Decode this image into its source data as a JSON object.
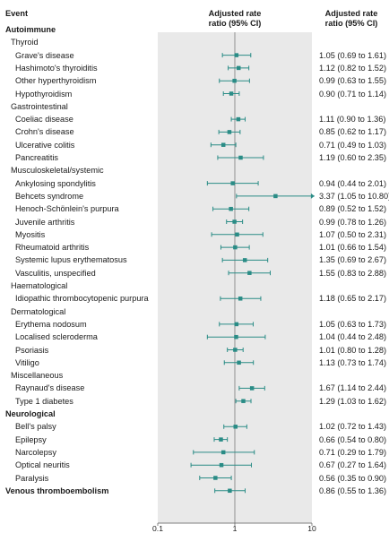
{
  "headers": {
    "event": "Event",
    "ratio_line1": "Adjusted rate",
    "ratio_line2": "ratio (95% CI)",
    "ci_line1": "Adjusted rate",
    "ci_line2": "ratio (95% CI)"
  },
  "colors": {
    "marker": "#2a8c86",
    "band": "#e9e9e9",
    "refline": "#7a7a7a"
  },
  "chart_data": {
    "type": "forest",
    "x_scale": "log",
    "xlim": [
      0.1,
      10
    ],
    "x_ticks": [
      {
        "value": 0.1,
        "label": "0.1"
      },
      {
        "value": 1,
        "label": "1"
      },
      {
        "value": 10,
        "label": "10"
      }
    ],
    "reference_value": 1,
    "rows": [
      {
        "label": "Autoimmune",
        "kind": "group"
      },
      {
        "label": "Thyroid",
        "kind": "sub"
      },
      {
        "label": "Grave's disease",
        "kind": "item",
        "est": 1.05,
        "lo": 0.69,
        "hi": 1.61,
        "text": "1.05 (0.69 to 1.61)"
      },
      {
        "label": "Hashimoto's thyroiditis",
        "kind": "item",
        "est": 1.12,
        "lo": 0.82,
        "hi": 1.52,
        "text": "1.12 (0.82 to 1.52)"
      },
      {
        "label": "Other hyperthyroidism",
        "kind": "item",
        "est": 0.99,
        "lo": 0.63,
        "hi": 1.55,
        "text": "0.99 (0.63 to 1.55)"
      },
      {
        "label": "Hypothyroidism",
        "kind": "item",
        "est": 0.9,
        "lo": 0.71,
        "hi": 1.14,
        "text": "0.90 (0.71 to 1.14)"
      },
      {
        "label": "Gastrointestinal",
        "kind": "sub"
      },
      {
        "label": "Coeliac disease",
        "kind": "item",
        "est": 1.11,
        "lo": 0.9,
        "hi": 1.36,
        "text": "1.11 (0.90 to 1.36)"
      },
      {
        "label": "Crohn's disease",
        "kind": "item",
        "est": 0.85,
        "lo": 0.62,
        "hi": 1.17,
        "text": "0.85 (0.62 to 1.17)"
      },
      {
        "label": "Ulcerative colitis",
        "kind": "item",
        "est": 0.71,
        "lo": 0.49,
        "hi": 1.03,
        "text": "0.71 (0.49 to 1.03)"
      },
      {
        "label": "Pancreatitis",
        "kind": "item",
        "est": 1.19,
        "lo": 0.6,
        "hi": 2.35,
        "text": "1.19 (0.60 to 2.35)"
      },
      {
        "label": "Musculoskeletal/systemic",
        "kind": "sub"
      },
      {
        "label": "Ankylosing spondylitis",
        "kind": "item",
        "est": 0.94,
        "lo": 0.44,
        "hi": 2.01,
        "text": "0.94 (0.44 to 2.01)"
      },
      {
        "label": "Behcets syndrome",
        "kind": "item",
        "est": 3.37,
        "lo": 1.05,
        "hi": 10.8,
        "text": "3.37 (1.05 to 10.80)",
        "arrow": true
      },
      {
        "label": "Henoch-Schönlein's purpura",
        "kind": "item",
        "est": 0.89,
        "lo": 0.52,
        "hi": 1.52,
        "text": "0.89 (0.52 to 1.52)"
      },
      {
        "label": "Juvenile arthritis",
        "kind": "item",
        "est": 0.99,
        "lo": 0.78,
        "hi": 1.26,
        "text": "0.99 (0.78 to 1.26)"
      },
      {
        "label": "Myositis",
        "kind": "item",
        "est": 1.07,
        "lo": 0.5,
        "hi": 2.31,
        "text": "1.07 (0.50 to 2.31)"
      },
      {
        "label": "Rheumatoid arthritis",
        "kind": "item",
        "est": 1.01,
        "lo": 0.66,
        "hi": 1.54,
        "text": "1.01 (0.66 to 1.54)"
      },
      {
        "label": "Systemic lupus erythematosus",
        "kind": "item",
        "est": 1.35,
        "lo": 0.69,
        "hi": 2.67,
        "text": "1.35 (0.69 to 2.67)"
      },
      {
        "label": "Vasculitis, unspecified",
        "kind": "item",
        "est": 1.55,
        "lo": 0.83,
        "hi": 2.88,
        "text": "1.55 (0.83 to 2.88)"
      },
      {
        "label": "Haematological",
        "kind": "sub"
      },
      {
        "label": "Idiopathic thrombocytopenic purpura",
        "kind": "item",
        "est": 1.18,
        "lo": 0.65,
        "hi": 2.17,
        "text": "1.18 (0.65 to 2.17)"
      },
      {
        "label": "Dermatological",
        "kind": "sub"
      },
      {
        "label": "Erythema nodosum",
        "kind": "item",
        "est": 1.05,
        "lo": 0.63,
        "hi": 1.73,
        "text": "1.05 (0.63 to 1.73)"
      },
      {
        "label": "Localised scleroderma",
        "kind": "item",
        "est": 1.04,
        "lo": 0.44,
        "hi": 2.48,
        "text": "1.04 (0.44 to 2.48)"
      },
      {
        "label": "Psoriasis",
        "kind": "item",
        "est": 1.01,
        "lo": 0.8,
        "hi": 1.28,
        "text": "1.01 (0.80 to 1.28)"
      },
      {
        "label": "Vitiligo",
        "kind": "item",
        "est": 1.13,
        "lo": 0.73,
        "hi": 1.74,
        "text": "1.13 (0.73 to 1.74)"
      },
      {
        "label": "Miscellaneous",
        "kind": "sub"
      },
      {
        "label": "Raynaud's disease",
        "kind": "item",
        "est": 1.67,
        "lo": 1.14,
        "hi": 2.44,
        "text": "1.67 (1.14 to 2.44)"
      },
      {
        "label": "Type 1 diabetes",
        "kind": "item",
        "est": 1.29,
        "lo": 1.03,
        "hi": 1.62,
        "text": "1.29 (1.03 to 1.62)"
      },
      {
        "label": "Neurological",
        "kind": "group"
      },
      {
        "label": "Bell's palsy",
        "kind": "item",
        "est": 1.02,
        "lo": 0.72,
        "hi": 1.43,
        "text": "1.02 (0.72 to 1.43)"
      },
      {
        "label": "Epilepsy",
        "kind": "item",
        "est": 0.66,
        "lo": 0.54,
        "hi": 0.8,
        "text": "0.66 (0.54 to 0.80)"
      },
      {
        "label": "Narcolepsy",
        "kind": "item",
        "est": 0.71,
        "lo": 0.29,
        "hi": 1.79,
        "text": "0.71 (0.29 to 1.79)"
      },
      {
        "label": "Optical neuritis",
        "kind": "item",
        "est": 0.67,
        "lo": 0.27,
        "hi": 1.64,
        "text": "0.67 (0.27 to 1.64)"
      },
      {
        "label": "Paralysis",
        "kind": "item",
        "est": 0.56,
        "lo": 0.35,
        "hi": 0.9,
        "text": "0.56 (0.35 to 0.90)"
      },
      {
        "label": "Venous thromboembolism",
        "kind": "group",
        "est": 0.86,
        "lo": 0.55,
        "hi": 1.36,
        "text": "0.86 (0.55 to 1.36)"
      }
    ]
  }
}
